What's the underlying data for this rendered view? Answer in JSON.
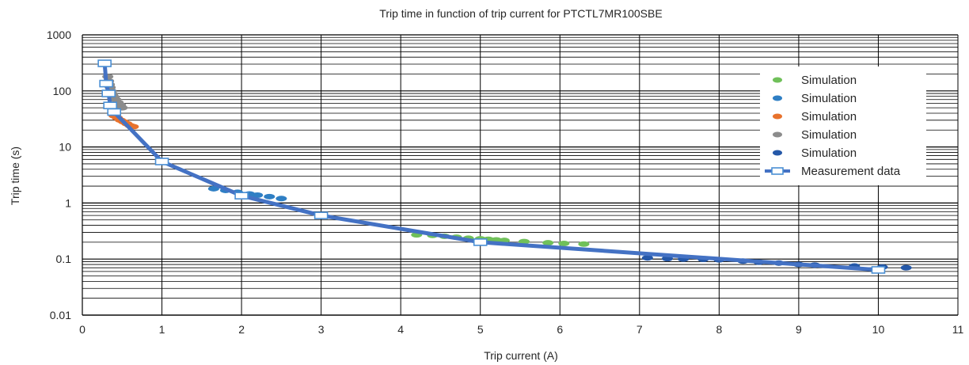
{
  "chart_data": {
    "type": "scatter",
    "title": "Trip time in function of trip current for PTCTL7MR100SBE",
    "xlabel": "Trip current (A)",
    "ylabel": "Trip time (s)",
    "xlim": [
      0,
      11
    ],
    "ylim": [
      0.01,
      1000
    ],
    "yscale": "log",
    "grid": "major and minor horizontal, major vertical",
    "legend_position": "right",
    "x_ticks": [
      "0",
      "1",
      "2",
      "3",
      "4",
      "5",
      "6",
      "7",
      "8",
      "9",
      "10",
      "11"
    ],
    "y_ticks": [
      "0.01",
      "0.1",
      "1",
      "10",
      "100",
      "1000"
    ],
    "series": [
      {
        "name": "Simulation",
        "color": "#70c05a",
        "marker": "ellipse",
        "points": [
          [
            4.2,
            0.27
          ],
          [
            4.4,
            0.265
          ],
          [
            4.55,
            0.255
          ],
          [
            4.7,
            0.245
          ],
          [
            4.85,
            0.235
          ],
          [
            5.0,
            0.23
          ],
          [
            5.1,
            0.225
          ],
          [
            5.2,
            0.22
          ],
          [
            5.3,
            0.215
          ],
          [
            5.55,
            0.205
          ],
          [
            5.85,
            0.195
          ],
          [
            6.05,
            0.19
          ],
          [
            6.3,
            0.185
          ]
        ]
      },
      {
        "name": "Simulation",
        "color": "#2f7fc4",
        "marker": "ellipse",
        "points": [
          [
            1.65,
            1.8
          ],
          [
            1.8,
            1.68
          ],
          [
            1.95,
            1.55
          ],
          [
            2.1,
            1.45
          ],
          [
            2.2,
            1.38
          ],
          [
            2.35,
            1.3
          ],
          [
            2.5,
            1.2
          ]
        ]
      },
      {
        "name": "Simulation",
        "color": "#e8722c",
        "marker": "ellipse",
        "points": [
          [
            0.4,
            36
          ],
          [
            0.44,
            33
          ],
          [
            0.48,
            30
          ],
          [
            0.52,
            28
          ],
          [
            0.56,
            26
          ],
          [
            0.6,
            24
          ],
          [
            0.64,
            23
          ]
        ]
      },
      {
        "name": "Simulation",
        "color": "#8c8c8c",
        "marker": "ellipse",
        "points": [
          [
            0.32,
            180
          ],
          [
            0.33,
            150
          ],
          [
            0.34,
            130
          ],
          [
            0.35,
            115
          ],
          [
            0.36,
            100
          ],
          [
            0.38,
            88
          ],
          [
            0.4,
            78
          ],
          [
            0.42,
            70
          ],
          [
            0.45,
            62
          ],
          [
            0.48,
            56
          ],
          [
            0.5,
            50
          ]
        ]
      },
      {
        "name": "Simulation",
        "color": "#2558a8",
        "marker": "ellipse",
        "points": [
          [
            7.1,
            0.105
          ],
          [
            7.35,
            0.102
          ],
          [
            7.55,
            0.1
          ],
          [
            7.8,
            0.099
          ],
          [
            8.0,
            0.097
          ],
          [
            8.3,
            0.092
          ],
          [
            8.5,
            0.088
          ],
          [
            8.75,
            0.085
          ],
          [
            9.0,
            0.08
          ],
          [
            9.2,
            0.078
          ],
          [
            9.7,
            0.075
          ],
          [
            10.05,
            0.072
          ],
          [
            10.35,
            0.07
          ]
        ]
      },
      {
        "name": "Measurement data",
        "color": "#4472c4",
        "marker": "square-open",
        "line": true,
        "points": [
          [
            0.28,
            310
          ],
          [
            0.3,
            135
          ],
          [
            0.33,
            90
          ],
          [
            0.35,
            55
          ],
          [
            0.4,
            42
          ],
          [
            1.0,
            5.5
          ],
          [
            2.0,
            1.35
          ],
          [
            3.0,
            0.6
          ],
          [
            5.0,
            0.2
          ],
          [
            10.0,
            0.064
          ]
        ]
      }
    ]
  }
}
